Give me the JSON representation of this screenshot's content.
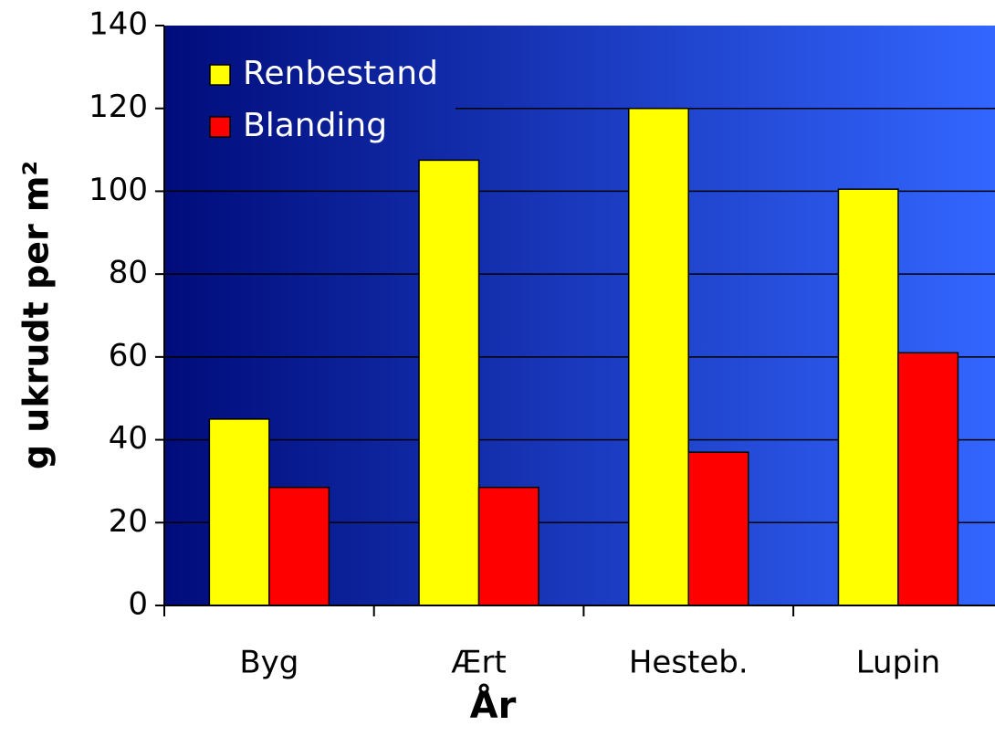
{
  "chart_data": {
    "type": "bar",
    "categories": [
      "Byg",
      "Ært",
      "Hesteb.",
      "Lupin"
    ],
    "series": [
      {
        "name": "Renbestand",
        "color": "#ffff00",
        "values": [
          45,
          107.5,
          120,
          100.5
        ]
      },
      {
        "name": "Blanding",
        "color": "#ff0000",
        "values": [
          28.5,
          28.5,
          37,
          61
        ]
      }
    ],
    "ylim": [
      0,
      140
    ],
    "yticks": [
      0,
      20,
      40,
      60,
      80,
      100,
      120,
      140
    ],
    "ylabel": "g ukrudt per m²",
    "xlabel": "År",
    "grid": true,
    "legend": "upper left"
  }
}
